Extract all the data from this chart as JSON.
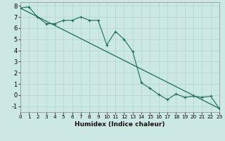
{
  "xlabel": "Humidex (Indice chaleur)",
  "background_color": "#cce8e4",
  "grid_color": "#aad4cc",
  "line_color": "#1a6b5a",
  "xlim": [
    0,
    23
  ],
  "ylim": [
    -1.5,
    8.3
  ],
  "xticks": [
    0,
    1,
    2,
    3,
    4,
    5,
    6,
    7,
    8,
    9,
    10,
    11,
    12,
    13,
    14,
    15,
    16,
    17,
    18,
    19,
    20,
    21,
    22,
    23
  ],
  "yticks": [
    -1,
    0,
    1,
    2,
    3,
    4,
    5,
    6,
    7,
    8
  ],
  "x_data": [
    0,
    1,
    2,
    3,
    4,
    5,
    6,
    7,
    8,
    9,
    10,
    11,
    12,
    13,
    14,
    15,
    16,
    17,
    18,
    19,
    20,
    21,
    22,
    23
  ],
  "y_data": [
    7.8,
    7.9,
    7.0,
    6.4,
    6.4,
    6.7,
    6.7,
    7.0,
    6.7,
    6.7,
    4.5,
    5.7,
    5.0,
    3.9,
    1.1,
    0.6,
    0.05,
    -0.4,
    0.1,
    -0.2,
    -0.1,
    -0.2,
    -0.1,
    -1.2
  ],
  "trend_x": [
    0,
    23
  ],
  "trend_y": [
    7.8,
    -1.2
  ],
  "xlabel_fontsize": 6.5,
  "tick_fontsize_x": 5.2,
  "tick_fontsize_y": 6.0
}
